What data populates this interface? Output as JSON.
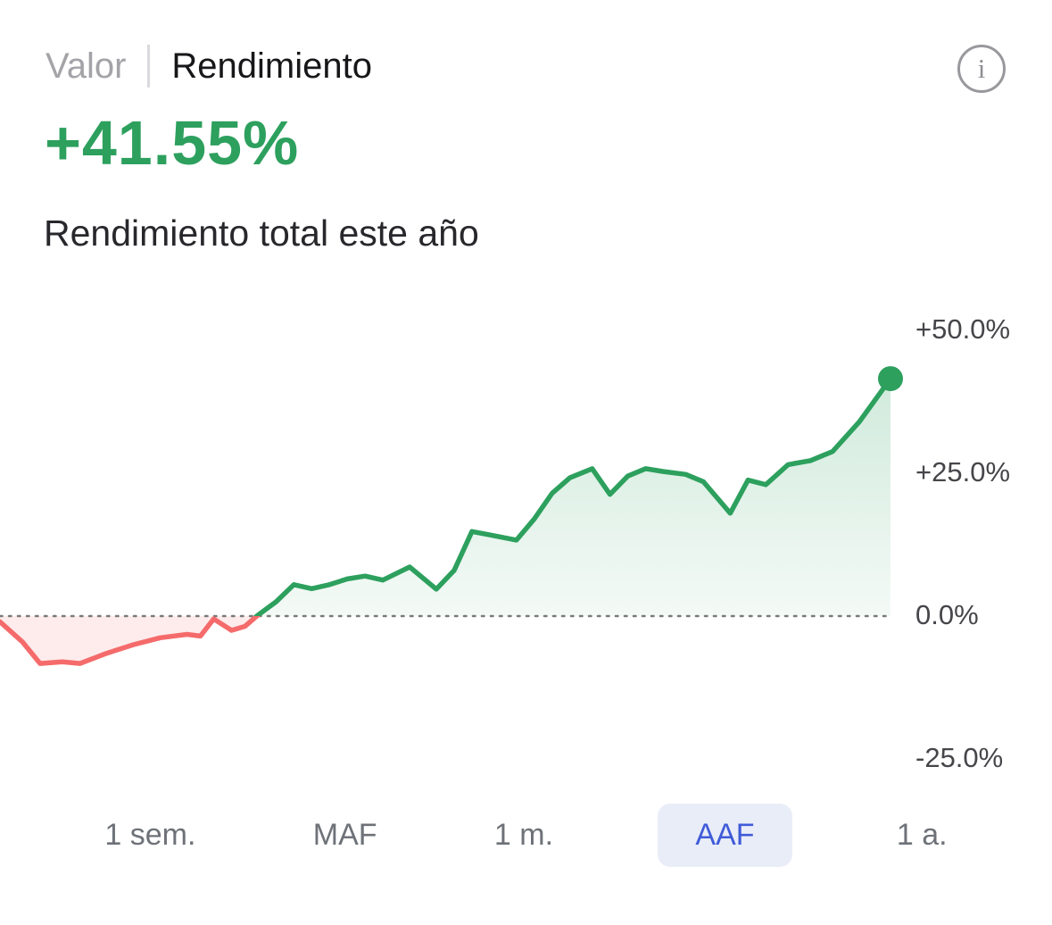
{
  "header": {
    "tabs": [
      {
        "label": "Valor",
        "active": false
      },
      {
        "label": "Rendimiento",
        "active": true
      }
    ],
    "info_icon": "i"
  },
  "summary": {
    "value": "+41.55%",
    "subtitle": "Rendimiento total este año"
  },
  "colors": {
    "accent_blue": "#3f5bd8",
    "pill_background": "#e9edf8",
    "text_primary": "#17171a",
    "text_muted": "#a3a3a8"
  },
  "chart_data": {
    "type": "area",
    "title": "Rendimiento total este año",
    "unit": "%",
    "final_value": 41.55,
    "x": [
      0,
      2.5,
      4.5,
      7,
      9,
      12,
      15,
      18,
      21,
      22.5,
      24,
      26,
      27.5,
      29,
      31,
      33,
      35,
      37,
      39,
      41,
      43,
      46,
      49,
      51,
      53,
      55,
      58,
      60,
      62,
      64,
      66.5,
      68.5,
      70.5,
      72.5,
      74.5,
      77,
      79,
      82,
      84,
      86,
      88.5,
      91,
      93.5,
      96.5,
      100
    ],
    "values": [
      -1.0,
      -4.5,
      -8.3,
      -8.0,
      -8.3,
      -6.5,
      -5.0,
      -3.8,
      -3.2,
      -3.5,
      -0.5,
      -2.5,
      -1.8,
      0.2,
      2.5,
      5.5,
      4.8,
      5.5,
      6.5,
      7.0,
      6.3,
      8.6,
      4.7,
      8.0,
      14.8,
      14.2,
      13.3,
      17.0,
      21.5,
      24.2,
      25.8,
      21.3,
      24.5,
      25.8,
      25.3,
      24.8,
      23.5,
      18.0,
      23.8,
      23.0,
      26.5,
      27.2,
      28.8,
      34.0,
      41.55
    ],
    "yticks": [
      {
        "label": "+50.0%",
        "value": 50
      },
      {
        "label": "+25.0%",
        "value": 25
      },
      {
        "label": "0.0%",
        "value": 0
      },
      {
        "label": "-25.0%",
        "value": -25
      }
    ],
    "ylim": [
      -30,
      53
    ],
    "grid": false,
    "legend_position": "none",
    "zero_baseline_dotted": true,
    "positive_color": "#2da05e",
    "negative_color": "#f56b6b",
    "end_marker": "dot"
  },
  "period_tabs": [
    {
      "label": "1 sem.",
      "active": false
    },
    {
      "label": "MAF",
      "active": false
    },
    {
      "label": "1 m.",
      "active": false
    },
    {
      "label": "AAF",
      "active": true
    },
    {
      "label": "1 a.",
      "active": false
    }
  ]
}
